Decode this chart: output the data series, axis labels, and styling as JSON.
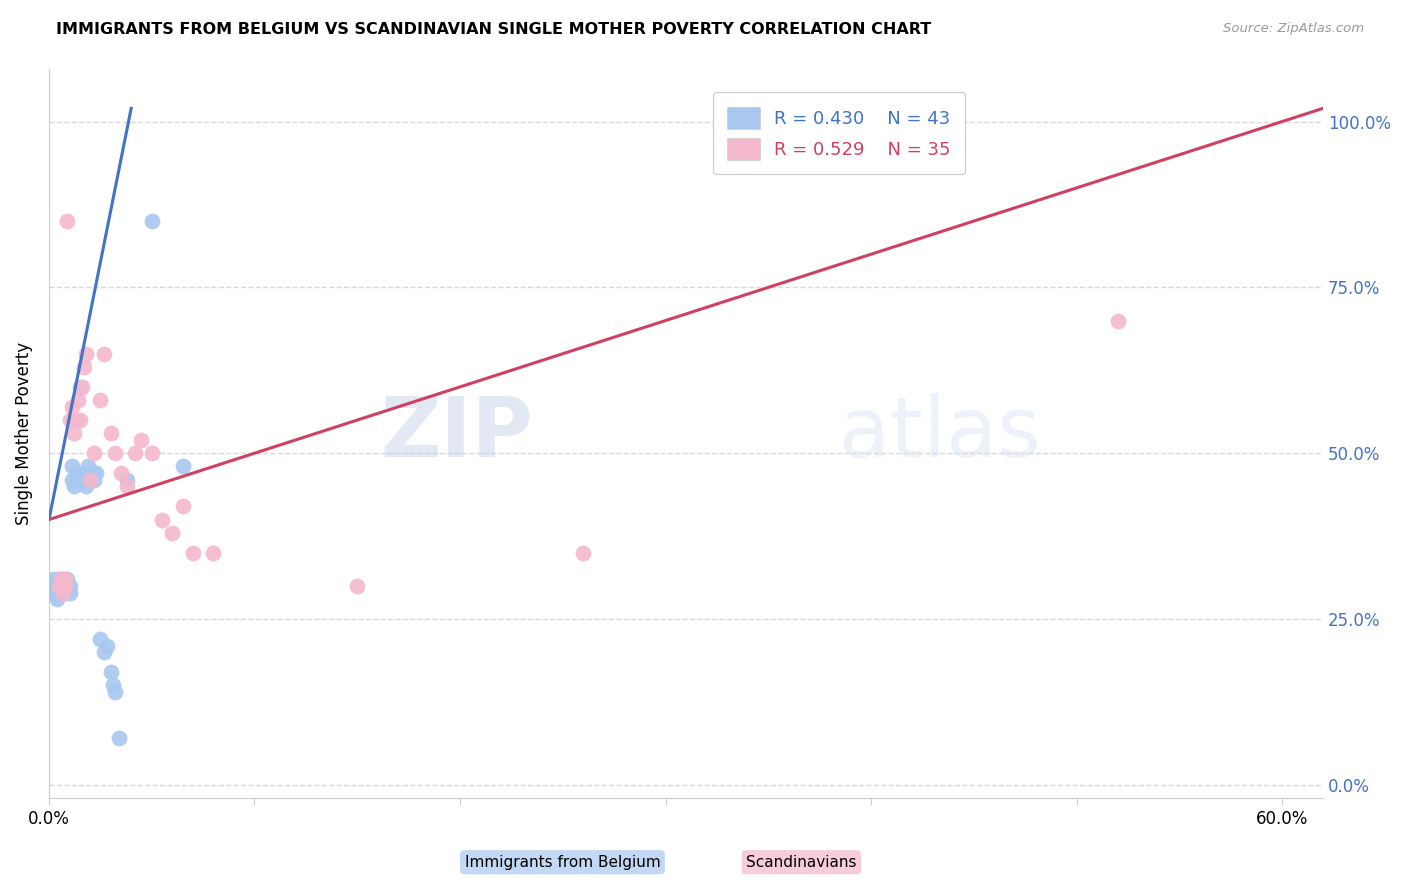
{
  "title": "IMMIGRANTS FROM BELGIUM VS SCANDINAVIAN SINGLE MOTHER POVERTY CORRELATION CHART",
  "source": "Source: ZipAtlas.com",
  "ylabel_left": "Single Mother Poverty",
  "xlim": [
    0.0,
    0.62
  ],
  "ylim": [
    -0.02,
    1.08
  ],
  "watermark_zip": "ZIP",
  "watermark_atlas": "atlas",
  "legend_r1": "R = 0.430",
  "legend_n1": "N = 43",
  "legend_r2": "R = 0.529",
  "legend_n2": "N = 35",
  "blue_color": "#a8c8f0",
  "pink_color": "#f4b8cc",
  "blue_line_color": "#4472c4",
  "pink_line_color": "#d04060",
  "right_tick_color": "#4472c4",
  "grid_color": "#d8d8d8",
  "background_color": "#ffffff",
  "blue_scatter_x": [
    0.001,
    0.002,
    0.003,
    0.003,
    0.004,
    0.004,
    0.005,
    0.005,
    0.006,
    0.006,
    0.007,
    0.007,
    0.007,
    0.008,
    0.008,
    0.009,
    0.009,
    0.01,
    0.01,
    0.011,
    0.011,
    0.012,
    0.013,
    0.014,
    0.015,
    0.016,
    0.017,
    0.018,
    0.019,
    0.02,
    0.021,
    0.022,
    0.023,
    0.025,
    0.027,
    0.028,
    0.03,
    0.031,
    0.032,
    0.034,
    0.038,
    0.05,
    0.065
  ],
  "blue_scatter_y": [
    0.3,
    0.31,
    0.29,
    0.3,
    0.28,
    0.29,
    0.3,
    0.31,
    0.29,
    0.3,
    0.3,
    0.31,
    0.29,
    0.3,
    0.29,
    0.3,
    0.31,
    0.29,
    0.3,
    0.46,
    0.48,
    0.45,
    0.47,
    0.46,
    0.6,
    0.46,
    0.47,
    0.45,
    0.48,
    0.46,
    0.47,
    0.46,
    0.47,
    0.22,
    0.2,
    0.21,
    0.17,
    0.15,
    0.14,
    0.07,
    0.46,
    0.85,
    0.48
  ],
  "pink_scatter_x": [
    0.005,
    0.006,
    0.007,
    0.007,
    0.008,
    0.008,
    0.009,
    0.01,
    0.011,
    0.012,
    0.013,
    0.014,
    0.015,
    0.016,
    0.017,
    0.018,
    0.02,
    0.022,
    0.025,
    0.027,
    0.03,
    0.032,
    0.035,
    0.038,
    0.042,
    0.045,
    0.05,
    0.055,
    0.06,
    0.065,
    0.07,
    0.08,
    0.15,
    0.26,
    0.52
  ],
  "pink_scatter_y": [
    0.3,
    0.31,
    0.3,
    0.29,
    0.3,
    0.31,
    0.85,
    0.55,
    0.57,
    0.53,
    0.55,
    0.58,
    0.55,
    0.6,
    0.63,
    0.65,
    0.46,
    0.5,
    0.58,
    0.65,
    0.53,
    0.5,
    0.47,
    0.45,
    0.5,
    0.52,
    0.5,
    0.4,
    0.38,
    0.42,
    0.35,
    0.35,
    0.3,
    0.35,
    0.7
  ],
  "blue_line_x0": 0.0,
  "blue_line_x1": 0.04,
  "blue_line_y0": 0.4,
  "blue_line_y1": 1.02,
  "pink_line_x0": 0.0,
  "pink_line_x1": 0.62,
  "pink_line_y0": 0.4,
  "pink_line_y1": 1.02
}
